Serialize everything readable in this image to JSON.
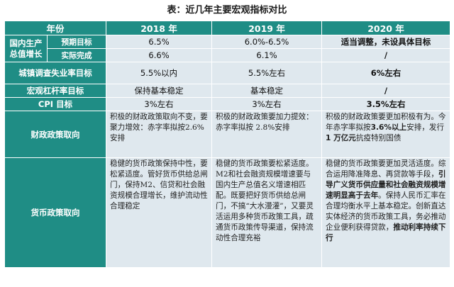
{
  "title": "表：近几年主要宏观指标对比",
  "header": {
    "year": "年份",
    "y2018": "2018 年",
    "y2019": "2019 年",
    "y2020": "2020 年"
  },
  "gdp": {
    "label": "国内生产总值增长",
    "target_label": "预期目标",
    "actual_label": "实际完成",
    "target": {
      "y2018": "6.5%",
      "y2019": "6.0%-6.5%",
      "y2020": "适当调整，未设具体目标"
    },
    "actual": {
      "y2018": "6.6%",
      "y2019": "6.1%",
      "y2020": "/"
    }
  },
  "unemployment": {
    "label": "城镇调查失业率目标",
    "y2018": "5.5%以内",
    "y2019": "5.5%左右",
    "y2020": "6%左右"
  },
  "leverage": {
    "label": "宏观杠杆率目标",
    "y2018": "保持基本稳定",
    "y2019": "基本稳定",
    "y2020": "/"
  },
  "cpi": {
    "label": "CPI 目标",
    "y2018": "3%左右",
    "y2019": "3%左右",
    "y2020": "3.5%左右"
  },
  "fiscal": {
    "label": "财政政策取向",
    "y2018": "积极的财政政策取向不变，要聚力增效：赤字率拟按2.6%安排",
    "y2019": "积极的财政政策要加力提效：赤字率拟按 2.8%安排",
    "y2020_a": "积极的财政政策要更加积极有为。今年赤字率拟按",
    "y2020_b": "3.6%以上",
    "y2020_c": "安排，发行",
    "y2020_d": "1 万亿元",
    "y2020_e": "抗疫特别国债"
  },
  "monetary": {
    "label": "货币政策取向",
    "y2018": "稳健的货币政策保持中性，要松紧适度。管好货币供给总闸门，保持M2、信贷和社会融资规模合理增长，维护流动性合理稳定",
    "y2019": "稳健的货币政策要松紧适度。M2和社会融资规模增速要与国内生产总值名义增速相匹配。既要把好货币供给总闸门，不搞“大水漫灌”，又要灵活运用多种货币政策工具，疏通货币政策传导渠道，保持流动性合理充裕",
    "y2020_a": "稳健的货币政策要更加灵活适度。综合运用降准降息、再贷款等手段，",
    "y2020_b": "引导广义货币供应量和社会融资规模增速明显高于去年",
    "y2020_c": "。保持人民币汇率在合理均衡水平上基本稳定。创新直达实体经济的货币政策工具，务必推动企业便利获得贷款，",
    "y2020_d": "推动利率持续下行"
  }
}
